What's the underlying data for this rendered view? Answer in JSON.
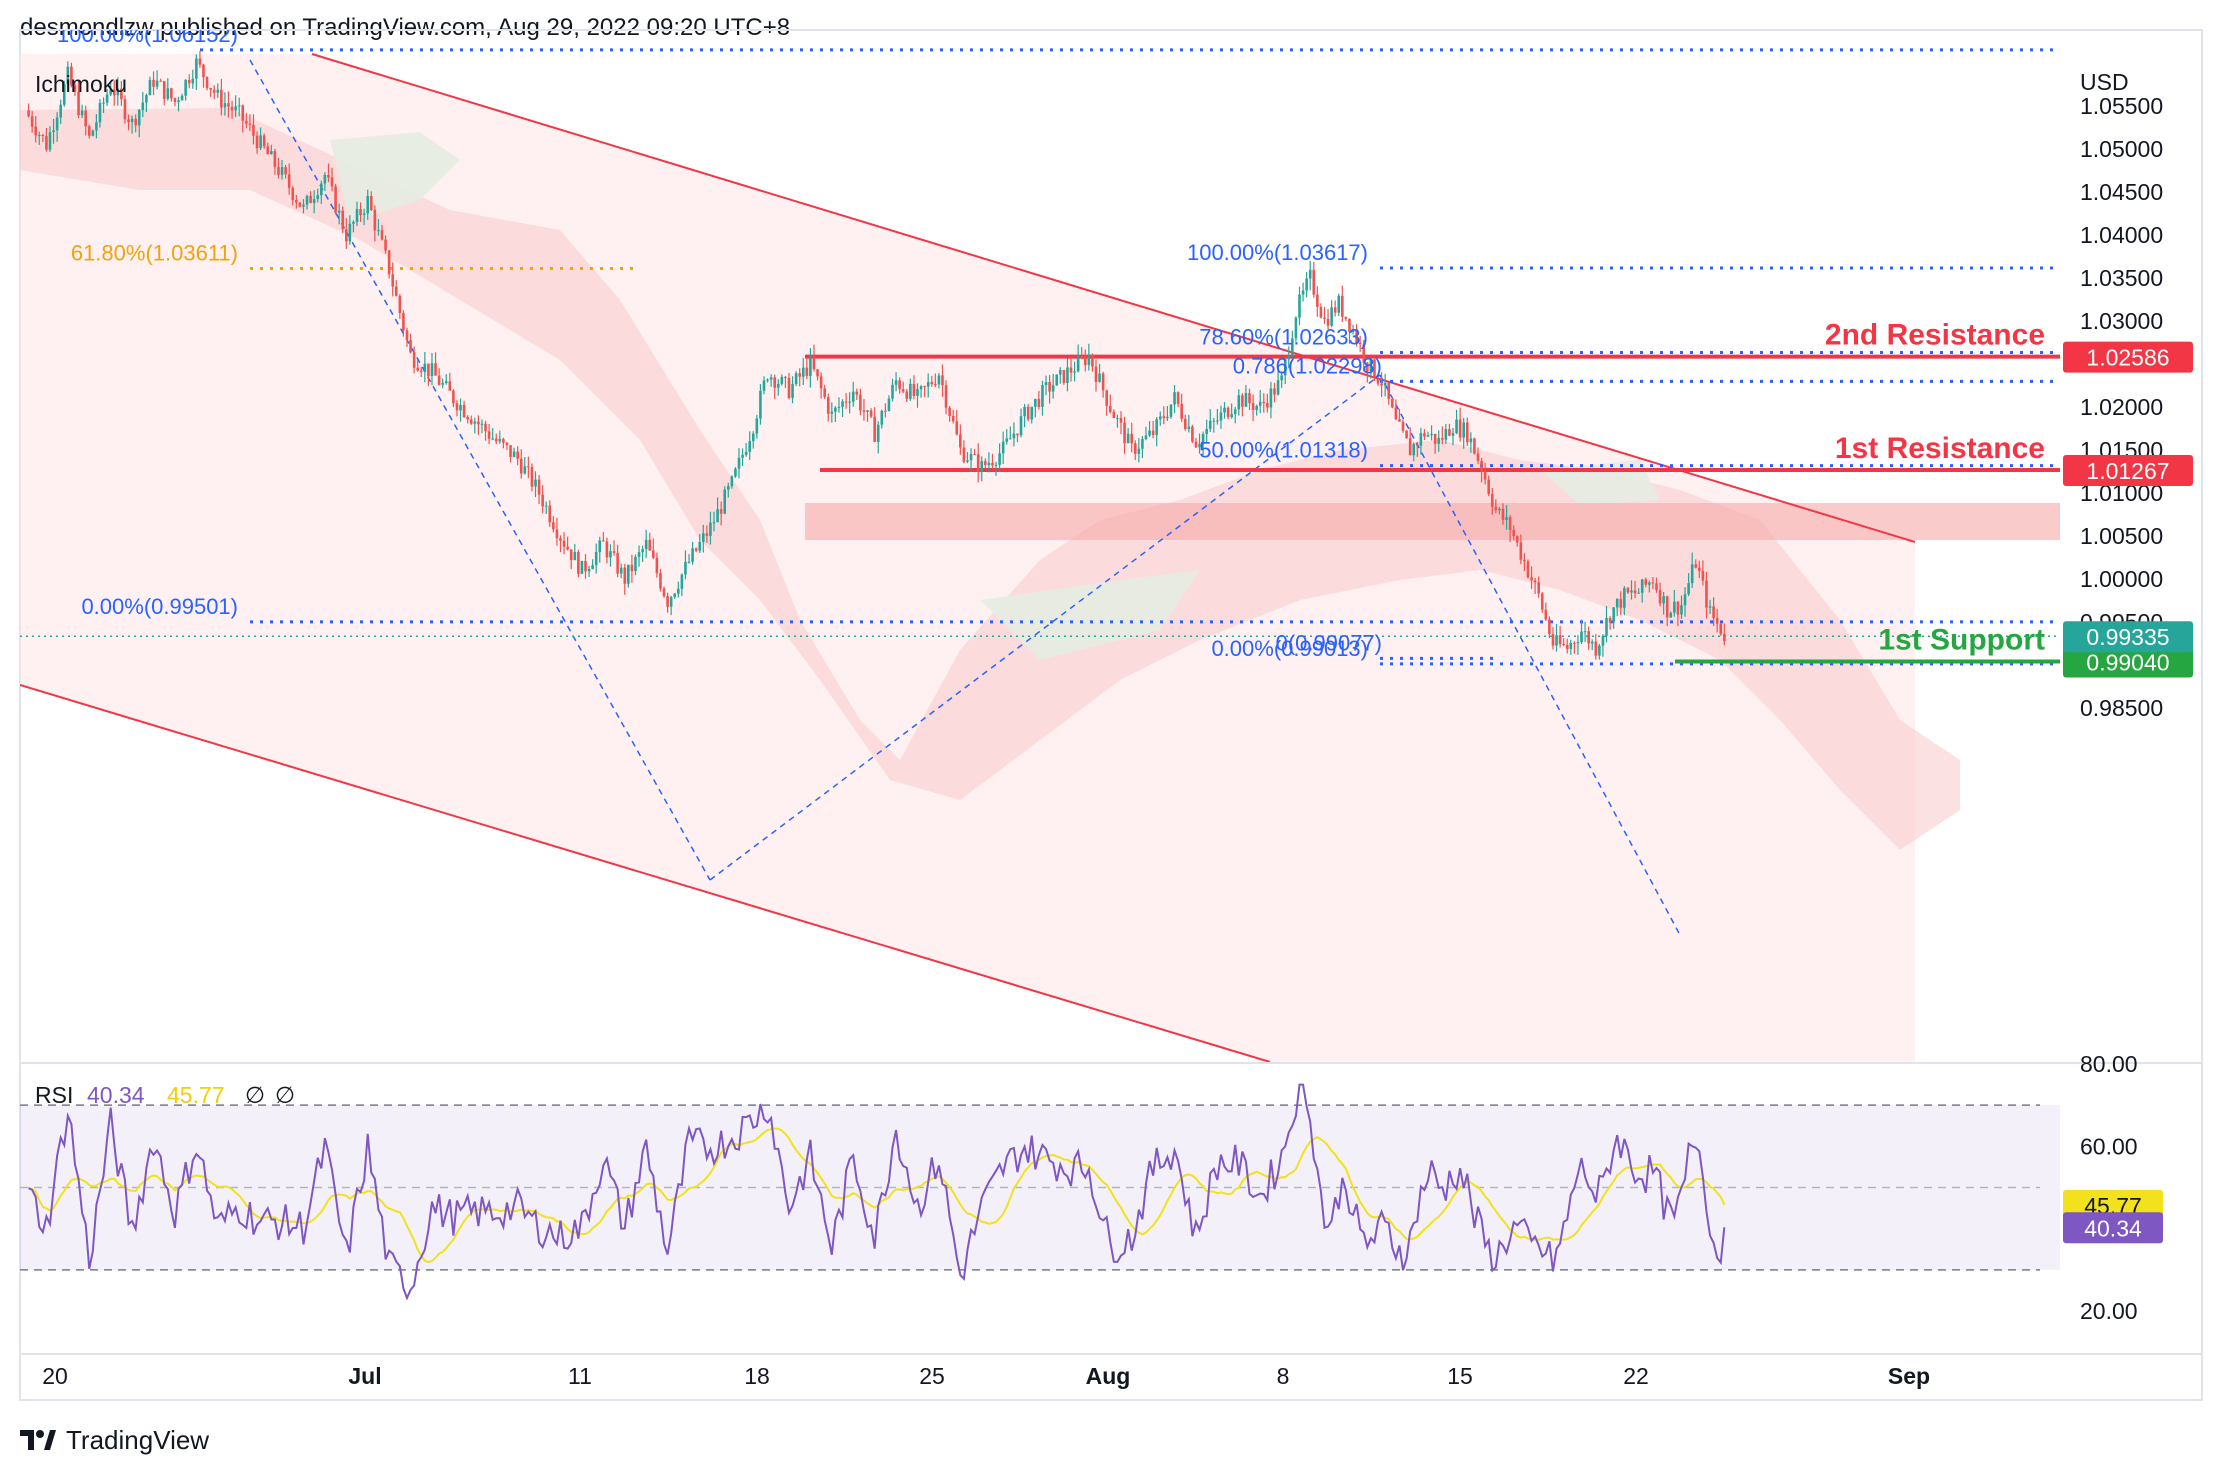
{
  "header": {
    "text": "desmondlzw published on TradingView.com, Aug 29, 2022 09:20 UTC+8"
  },
  "footer": {
    "brand": "TradingView",
    "logo_icon": "tradingview-logo-icon"
  },
  "colors": {
    "up": "#26a69a",
    "down": "#ef5350",
    "resistance": "#f23645",
    "support": "#26a641",
    "fib_blue": "#2962ff",
    "fib_orange": "#f0a30a",
    "rsi": "#7e57c2",
    "rsi_ma": "#f2e21d"
  },
  "chart_data": [
    {
      "type": "candlestick",
      "title": "",
      "indicator_label": "Ichimoku",
      "currency": "USD",
      "x_ticks": [
        "20",
        "Jul",
        "11",
        "18",
        "25",
        "Aug",
        "8",
        "15",
        "22",
        "Sep"
      ],
      "y_ticks": [
        "1.05500",
        "1.05000",
        "1.04500",
        "1.04000",
        "1.03500",
        "1.03000",
        "1.02500",
        "1.02000",
        "1.01500",
        "1.01000",
        "1.00500",
        "1.00000",
        "0.99500",
        "0.98500"
      ],
      "ylim": [
        0.981,
        1.065
      ],
      "price_path": [
        [
          0,
          1.0545
        ],
        [
          6,
          1.0505
        ],
        [
          12,
          1.0585
        ],
        [
          18,
          1.0512
        ],
        [
          24,
          1.0575
        ],
        [
          30,
          1.053
        ],
        [
          36,
          1.058
        ],
        [
          42,
          1.0555
        ],
        [
          48,
          1.06
        ],
        [
          54,
          1.056
        ],
        [
          60,
          1.054
        ],
        [
          66,
          1.0505
        ],
        [
          72,
          1.047
        ],
        [
          78,
          1.043
        ],
        [
          84,
          1.047
        ],
        [
          90,
          1.04
        ],
        [
          96,
          1.044
        ],
        [
          102,
          1.036
        ],
        [
          108,
          1.026
        ],
        [
          114,
          1.024
        ],
        [
          120,
          1.021
        ],
        [
          126,
          1.0185
        ],
        [
          132,
          1.016
        ],
        [
          138,
          1.014
        ],
        [
          144,
          1.01
        ],
        [
          150,
          1.005
        ],
        [
          156,
          1.001
        ],
        [
          162,
          1.004
        ],
        [
          168,
          1.0
        ],
        [
          174,
          1.004
        ],
        [
          180,
          0.9975
        ],
        [
          186,
          1.002
        ],
        [
          192,
          1.006
        ],
        [
          198,
          1.011
        ],
        [
          204,
          1.018
        ],
        [
          208,
          1.024
        ],
        [
          214,
          1.022
        ],
        [
          220,
          1.025
        ],
        [
          226,
          1.019
        ],
        [
          232,
          1.022
        ],
        [
          238,
          1.017
        ],
        [
          244,
          1.023
        ],
        [
          250,
          1.021
        ],
        [
          256,
          1.024
        ],
        [
          262,
          1.015
        ],
        [
          268,
          1.013
        ],
        [
          274,
          1.015
        ],
        [
          280,
          1.019
        ],
        [
          286,
          1.022
        ],
        [
          292,
          1.024
        ],
        [
          298,
          1.026
        ],
        [
          304,
          1.02
        ],
        [
          310,
          1.015
        ],
        [
          316,
          1.017
        ],
        [
          322,
          1.021
        ],
        [
          328,
          1.016
        ],
        [
          334,
          1.0185
        ],
        [
          340,
          1.021
        ],
        [
          346,
          1.02
        ],
        [
          352,
          1.023
        ],
        [
          356,
          1.031
        ],
        [
          360,
          1.035
        ],
        [
          364,
          1.03
        ],
        [
          368,
          1.032
        ],
        [
          372,
          1.029
        ],
        [
          376,
          1.025
        ],
        [
          380,
          1.023
        ],
        [
          384,
          1.018
        ],
        [
          388,
          1.015
        ],
        [
          392,
          1.017
        ],
        [
          396,
          1.016
        ],
        [
          400,
          1.018
        ],
        [
          404,
          1.017
        ],
        [
          408,
          1.013
        ],
        [
          412,
          1.008
        ],
        [
          416,
          1.006
        ],
        [
          420,
          1.002
        ],
        [
          424,
          0.998
        ],
        [
          428,
          0.9925
        ],
        [
          432,
          0.992
        ],
        [
          436,
          0.994
        ],
        [
          440,
          0.992
        ],
        [
          444,
          0.996
        ],
        [
          448,
          0.998
        ],
        [
          452,
          0.9985
        ],
        [
          456,
          1.0
        ],
        [
          460,
          0.9965
        ],
        [
          464,
          0.997
        ],
        [
          468,
          1.002
        ],
        [
          472,
          0.996
        ],
        [
          476,
          0.9935
        ]
      ],
      "fibonacci": [
        {
          "label": "100.00%(1.06152)",
          "value": 1.06152
        },
        {
          "label": "61.80%(1.03611)",
          "value": 1.03611
        },
        {
          "label": "0.00%(0.99501)",
          "value": 0.99501
        },
        {
          "label": "100.00%(1.03617)",
          "value": 1.03617
        },
        {
          "label": "78.60%(1.02633)",
          "value": 1.02633
        },
        {
          "label": "0.786(1.02298)",
          "value": 1.02298
        },
        {
          "label": "50.00%(1.01318)",
          "value": 1.01318
        },
        {
          "label": "0(0.99077)",
          "value": 0.99077
        },
        {
          "label": "0.00%(0.99013)",
          "value": 0.99013
        }
      ],
      "levels": [
        {
          "name": "2nd Resistance",
          "price_label": "1.02586",
          "value": 1.02586,
          "role": "resistance"
        },
        {
          "name": "1st Resistance",
          "price_label": "1.01267",
          "value": 1.01267,
          "role": "resistance"
        },
        {
          "name": "1st Support",
          "price_label": "0.99040",
          "value": 0.9904,
          "role": "support"
        }
      ],
      "current_price_label": "0.99335",
      "current_price": 0.99335
    },
    {
      "type": "line",
      "title": "RSI",
      "indicator_label": "RSI",
      "values_label": [
        "40.34",
        "45.77"
      ],
      "null_marks": [
        "∅",
        "∅"
      ],
      "y_ticks": [
        "80.00",
        "60.00",
        "20.00"
      ],
      "ylim": [
        15,
        82
      ],
      "bands": [
        70,
        30
      ],
      "midline": 50,
      "last_rsi": 40.34,
      "last_rsi_ma": 45.77
    }
  ]
}
